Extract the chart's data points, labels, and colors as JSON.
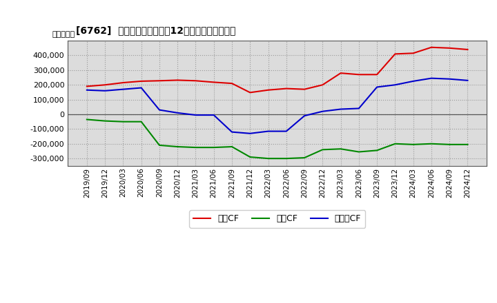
{
  "title": "[6762]  キャッシュフローの12か月移動合計の推移",
  "ylabel": "（百万円）",
  "background_color": "#ffffff",
  "grid_color": "#999999",
  "plot_bg_color": "#dcdcdc",
  "x_labels": [
    "2019/09",
    "2019/12",
    "2020/03",
    "2020/06",
    "2020/09",
    "2020/12",
    "2021/03",
    "2021/06",
    "2021/09",
    "2021/12",
    "2022/03",
    "2022/06",
    "2022/09",
    "2022/12",
    "2023/03",
    "2023/06",
    "2023/09",
    "2023/12",
    "2024/03",
    "2024/06",
    "2024/09",
    "2024/12"
  ],
  "operating_cf": [
    190000,
    200000,
    215000,
    225000,
    228000,
    232000,
    228000,
    218000,
    210000,
    148000,
    165000,
    175000,
    170000,
    200000,
    280000,
    270000,
    270000,
    410000,
    415000,
    455000,
    450000,
    440000
  ],
  "investing_cf": [
    -35000,
    -45000,
    -50000,
    -50000,
    -210000,
    -220000,
    -225000,
    -225000,
    -220000,
    -290000,
    -300000,
    -300000,
    -295000,
    -240000,
    -235000,
    -255000,
    -245000,
    -200000,
    -205000,
    -200000,
    -205000,
    -205000
  ],
  "free_cf": [
    165000,
    160000,
    170000,
    180000,
    30000,
    10000,
    -5000,
    -5000,
    -120000,
    -130000,
    -115000,
    -115000,
    -10000,
    20000,
    35000,
    40000,
    185000,
    200000,
    225000,
    245000,
    240000,
    230000
  ],
  "operating_color": "#dd0000",
  "investing_color": "#008800",
  "free_color": "#0000cc",
  "ylim": [
    -350000,
    500000
  ],
  "yticks": [
    -300000,
    -200000,
    -100000,
    0,
    100000,
    200000,
    300000,
    400000
  ],
  "legend_labels": [
    "営業CF",
    "投資CF",
    "フリーCF"
  ]
}
